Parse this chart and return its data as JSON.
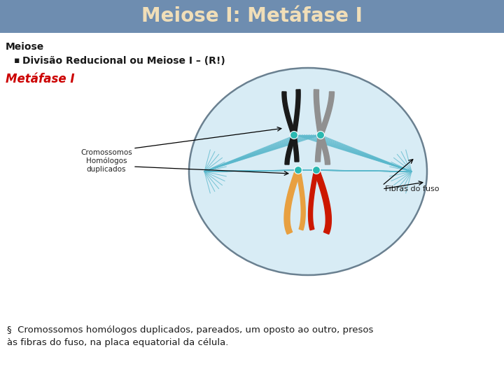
{
  "title": "Meiose I: Metáfase I",
  "title_bg_color": "#6e8db0",
  "title_text_color": "#f0deb8",
  "bg_color": "#ffffff",
  "heading1": "Meiose",
  "heading1_color": "#1a1a1a",
  "bullet1": "Divisão Reducional ou Meiose I – (R!)",
  "bullet1_color": "#1a1a1a",
  "subheading": "Metáfase I",
  "subheading_color": "#cc0000",
  "label1": "Cromossomos\nHomólogos\nduplicados",
  "label2": "Fibras do fuso",
  "footer_line1": "§  Cromossomos homólogos duplicados, pareados, um oposto ao outro, presos",
  "footer_line2": "às fibras do fuso, na placa equatorial da célula.",
  "footer_color": "#1a1a1a",
  "cell_bg": "#d8ecf5",
  "cell_border": "#6a8090",
  "spindle_color": "#5ab8cc",
  "chr_black1": "#1a1a1a",
  "chr_black2": "#909090",
  "chr_red": "#cc1800",
  "chr_orange": "#e8a040",
  "centromere_color": "#2ab8b0"
}
